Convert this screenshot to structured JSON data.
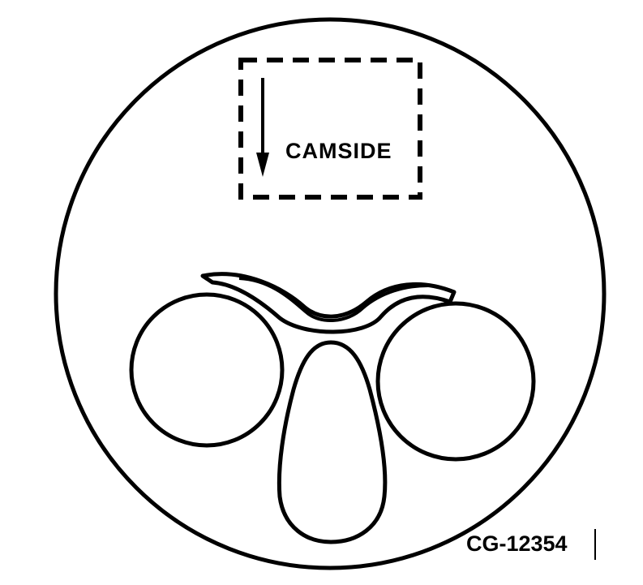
{
  "diagram": {
    "marking_label": "CAMSIDE",
    "figure_id": "CG-12354"
  },
  "colors": {
    "ink": "#000000",
    "paper": "#ffffff"
  }
}
